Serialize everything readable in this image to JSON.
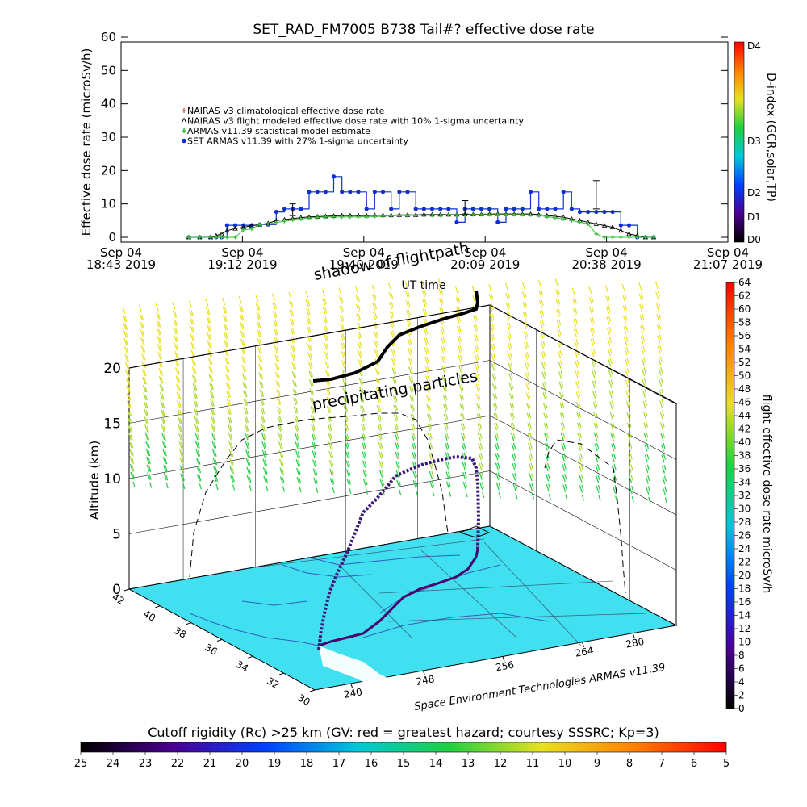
{
  "chart_data": [
    {
      "type": "line",
      "title": "SET_RAD_FM7005   B738 Tail#? effective dose rate",
      "ylabel": "Effective dose rate (microSv/h)",
      "xlabel": "UT time",
      "ylim": [
        0,
        60
      ],
      "yticks": [
        "0",
        "10",
        "20",
        "30",
        "40",
        "50",
        "60"
      ],
      "xticks": [
        {
          "l1": "Sep 04",
          "l2": "18:43 2019"
        },
        {
          "l1": "Sep 04",
          "l2": "19:12 2019"
        },
        {
          "l1": "Sep 04",
          "l2": "19:40 2019"
        },
        {
          "l1": "Sep 04",
          "l2": "20:09 2019"
        },
        {
          "l1": "Sep 04",
          "l2": "20:38 2019"
        },
        {
          "l1": "Sep 04",
          "l2": "21:07 2019"
        }
      ],
      "legend": [
        {
          "label": "NAIRAS v3 climatological effective dose rate",
          "color": "#d07070"
        },
        {
          "label": "NAIRAS v3 flight modeled effective dose rate with 10% 1-sigma uncertainty",
          "color": "#000000"
        },
        {
          "label": "ARMAS v11.39 statistical model estimate",
          "color": "#40c040"
        },
        {
          "label": "SET ARMAS v11.39 with 27% 1-sigma uncertainty",
          "color": "#1030d0"
        }
      ],
      "x_minutes": [
        10,
        14,
        18,
        20,
        22,
        24,
        27,
        30,
        33,
        36,
        39,
        42,
        45,
        48,
        51,
        54,
        57,
        60,
        63,
        66,
        69,
        72,
        75,
        78,
        81,
        84,
        87,
        90,
        93,
        96,
        99,
        102,
        105,
        108,
        111,
        114,
        117,
        120,
        123,
        126,
        129,
        132,
        135,
        138,
        141,
        144,
        147,
        150,
        153,
        156,
        159,
        162,
        165,
        168,
        171,
        174,
        177,
        180
      ],
      "series": [
        {
          "name": "SET ARMAS v11.39 with 27% 1-sigma uncertainty",
          "color": "#1030d0",
          "values": [
            0,
            0,
            0,
            0,
            0,
            3.6,
            3.6,
            3.6,
            3.6,
            3.8,
            3.8,
            7.6,
            8.5,
            8.5,
            8.5,
            13.6,
            13.6,
            13.6,
            18.2,
            13.6,
            13.6,
            13.6,
            8.5,
            13.6,
            13.6,
            8.5,
            13.6,
            13.6,
            8.5,
            8.5,
            8.5,
            8.5,
            8.5,
            4.5,
            8.5,
            8.5,
            8.5,
            8.5,
            4.5,
            8.5,
            8.5,
            8.5,
            13.6,
            8.5,
            8.5,
            8.5,
            13.6,
            8.5,
            7.6,
            7.6,
            7.6,
            7.6,
            7.6,
            3.6,
            3.6,
            0,
            0,
            0
          ]
        },
        {
          "name": "NAIRAS v3 flight modeled effective dose rate with 10% 1-sigma uncertainty",
          "color": "#000000",
          "values": [
            0,
            0,
            0,
            0.5,
            1,
            2,
            2.6,
            3,
            3.5,
            3.8,
            4.2,
            5,
            5.3,
            5.6,
            5.9,
            6.1,
            6.2,
            6.3,
            6.4,
            6.5,
            6.5,
            6.5,
            6.5,
            6.6,
            6.6,
            6.6,
            6.7,
            6.7,
            6.7,
            6.8,
            6.8,
            6.8,
            6.8,
            6.8,
            6.9,
            6.9,
            6.9,
            7,
            7,
            7,
            7,
            7,
            7,
            6.8,
            6.5,
            6.3,
            6,
            5.5,
            5,
            4.5,
            4,
            3.5,
            3,
            2,
            1,
            0.5,
            0,
            0
          ]
        },
        {
          "name": "ARMAS v11.39 statistical model estimate",
          "color": "#40c040",
          "values": [
            0,
            0,
            0,
            0,
            0,
            0,
            0,
            2.2,
            2.5,
            3.8,
            4,
            4.4,
            4.8,
            5.2,
            5.5,
            5.8,
            6,
            6.1,
            6.1,
            6.1,
            6.1,
            6.1,
            6.2,
            6.2,
            6.3,
            6.4,
            6.5,
            6.5,
            6.6,
            6.6,
            6.6,
            6.6,
            6.7,
            6.7,
            6.7,
            6.8,
            6.8,
            6.8,
            6.8,
            6.8,
            6.8,
            6.8,
            6.7,
            6.5,
            6.2,
            5.8,
            5.5,
            5,
            4.5,
            4,
            1,
            0,
            0,
            0,
            0,
            0,
            0,
            0
          ]
        }
      ],
      "error_bars": [
        {
          "x_minutes": 48,
          "low": 6.5,
          "high": 10
        },
        {
          "x_minutes": 111,
          "low": 7,
          "high": 11
        },
        {
          "x_minutes": 159,
          "low": 8.5,
          "high": 17
        }
      ],
      "right_colorbar": {
        "label": "D-index (GCR,solar,TP)",
        "ticks": [
          "D0",
          "D1",
          "D2",
          "D3",
          "D4"
        ],
        "tick_values": [
          0,
          1,
          2,
          3,
          4
        ],
        "stops": [
          "#000000",
          "#4b0090",
          "#0040ff",
          "#00c8d8",
          "#20d040",
          "#e8e020",
          "#ff8000",
          "#ff0000"
        ]
      }
    },
    {
      "type": "scatter",
      "zlabel": "Altitude (km)",
      "zticks": [
        "0",
        "5",
        "10",
        "15",
        "20"
      ],
      "lat_ticks": [
        "42",
        "40",
        "38",
        "36",
        "34",
        "32",
        "30"
      ],
      "lon_ticks": [
        "240",
        "248",
        "256",
        "264",
        "280"
      ],
      "annotations": {
        "shadow": "shadow of flightpath",
        "precip": "precipitating particles",
        "credit": "Space Environment Technologies ARMAS v11.39"
      },
      "right_colorbar": {
        "label": "flight effective dose rate microSv/h",
        "min": 0,
        "max": 64,
        "ticks": [
          "0",
          "2",
          "4",
          "6",
          "8",
          "10",
          "12",
          "14",
          "16",
          "18",
          "20",
          "22",
          "24",
          "26",
          "28",
          "30",
          "32",
          "34",
          "36",
          "38",
          "40",
          "42",
          "44",
          "46",
          "48",
          "50",
          "52",
          "54",
          "56",
          "58",
          "60",
          "62",
          "64"
        ],
        "stops": [
          "#000000",
          "#4b0090",
          "#0040ff",
          "#00c8d8",
          "#20d040",
          "#e8e020",
          "#ff8000",
          "#ff0000"
        ]
      },
      "bottom_colorbar": {
        "label": "Cutoff rigidity (Rc) >25 km (GV: red = greatest hazard; courtesy SSSRC; Kp=3)",
        "ticks": [
          "25",
          "24",
          "23",
          "22",
          "21",
          "20",
          "19",
          "18",
          "17",
          "16",
          "15",
          "14",
          "13",
          "12",
          "11",
          "10",
          "9",
          "8",
          "7",
          "6",
          "5"
        ],
        "stops": [
          "#000000",
          "#4b0090",
          "#0040ff",
          "#00c8d8",
          "#20d040",
          "#e8e020",
          "#ff8000",
          "#ff0000"
        ]
      },
      "surface_color": "#40e0f0"
    }
  ]
}
